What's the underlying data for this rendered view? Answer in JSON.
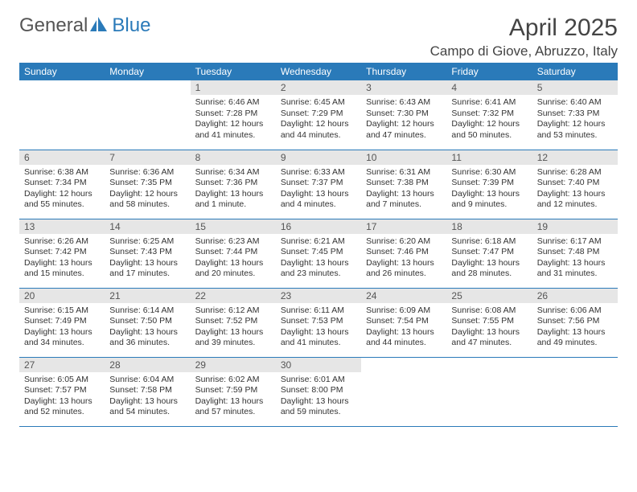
{
  "logo": {
    "word1": "General",
    "word2": "Blue"
  },
  "title": "April 2025",
  "location": "Campo di Giove, Abruzzo, Italy",
  "colors": {
    "header_bg": "#2a7ab9",
    "header_fg": "#ffffff",
    "daynum_bg": "#e6e6e6",
    "text": "#333333",
    "rule": "#2a7ab9"
  },
  "weekdays": [
    "Sunday",
    "Monday",
    "Tuesday",
    "Wednesday",
    "Thursday",
    "Friday",
    "Saturday"
  ],
  "weeks": [
    [
      null,
      null,
      {
        "n": "1",
        "sr": "Sunrise: 6:46 AM",
        "ss": "Sunset: 7:28 PM",
        "dl": "Daylight: 12 hours and 41 minutes."
      },
      {
        "n": "2",
        "sr": "Sunrise: 6:45 AM",
        "ss": "Sunset: 7:29 PM",
        "dl": "Daylight: 12 hours and 44 minutes."
      },
      {
        "n": "3",
        "sr": "Sunrise: 6:43 AM",
        "ss": "Sunset: 7:30 PM",
        "dl": "Daylight: 12 hours and 47 minutes."
      },
      {
        "n": "4",
        "sr": "Sunrise: 6:41 AM",
        "ss": "Sunset: 7:32 PM",
        "dl": "Daylight: 12 hours and 50 minutes."
      },
      {
        "n": "5",
        "sr": "Sunrise: 6:40 AM",
        "ss": "Sunset: 7:33 PM",
        "dl": "Daylight: 12 hours and 53 minutes."
      }
    ],
    [
      {
        "n": "6",
        "sr": "Sunrise: 6:38 AM",
        "ss": "Sunset: 7:34 PM",
        "dl": "Daylight: 12 hours and 55 minutes."
      },
      {
        "n": "7",
        "sr": "Sunrise: 6:36 AM",
        "ss": "Sunset: 7:35 PM",
        "dl": "Daylight: 12 hours and 58 minutes."
      },
      {
        "n": "8",
        "sr": "Sunrise: 6:34 AM",
        "ss": "Sunset: 7:36 PM",
        "dl": "Daylight: 13 hours and 1 minute."
      },
      {
        "n": "9",
        "sr": "Sunrise: 6:33 AM",
        "ss": "Sunset: 7:37 PM",
        "dl": "Daylight: 13 hours and 4 minutes."
      },
      {
        "n": "10",
        "sr": "Sunrise: 6:31 AM",
        "ss": "Sunset: 7:38 PM",
        "dl": "Daylight: 13 hours and 7 minutes."
      },
      {
        "n": "11",
        "sr": "Sunrise: 6:30 AM",
        "ss": "Sunset: 7:39 PM",
        "dl": "Daylight: 13 hours and 9 minutes."
      },
      {
        "n": "12",
        "sr": "Sunrise: 6:28 AM",
        "ss": "Sunset: 7:40 PM",
        "dl": "Daylight: 13 hours and 12 minutes."
      }
    ],
    [
      {
        "n": "13",
        "sr": "Sunrise: 6:26 AM",
        "ss": "Sunset: 7:42 PM",
        "dl": "Daylight: 13 hours and 15 minutes."
      },
      {
        "n": "14",
        "sr": "Sunrise: 6:25 AM",
        "ss": "Sunset: 7:43 PM",
        "dl": "Daylight: 13 hours and 17 minutes."
      },
      {
        "n": "15",
        "sr": "Sunrise: 6:23 AM",
        "ss": "Sunset: 7:44 PM",
        "dl": "Daylight: 13 hours and 20 minutes."
      },
      {
        "n": "16",
        "sr": "Sunrise: 6:21 AM",
        "ss": "Sunset: 7:45 PM",
        "dl": "Daylight: 13 hours and 23 minutes."
      },
      {
        "n": "17",
        "sr": "Sunrise: 6:20 AM",
        "ss": "Sunset: 7:46 PM",
        "dl": "Daylight: 13 hours and 26 minutes."
      },
      {
        "n": "18",
        "sr": "Sunrise: 6:18 AM",
        "ss": "Sunset: 7:47 PM",
        "dl": "Daylight: 13 hours and 28 minutes."
      },
      {
        "n": "19",
        "sr": "Sunrise: 6:17 AM",
        "ss": "Sunset: 7:48 PM",
        "dl": "Daylight: 13 hours and 31 minutes."
      }
    ],
    [
      {
        "n": "20",
        "sr": "Sunrise: 6:15 AM",
        "ss": "Sunset: 7:49 PM",
        "dl": "Daylight: 13 hours and 34 minutes."
      },
      {
        "n": "21",
        "sr": "Sunrise: 6:14 AM",
        "ss": "Sunset: 7:50 PM",
        "dl": "Daylight: 13 hours and 36 minutes."
      },
      {
        "n": "22",
        "sr": "Sunrise: 6:12 AM",
        "ss": "Sunset: 7:52 PM",
        "dl": "Daylight: 13 hours and 39 minutes."
      },
      {
        "n": "23",
        "sr": "Sunrise: 6:11 AM",
        "ss": "Sunset: 7:53 PM",
        "dl": "Daylight: 13 hours and 41 minutes."
      },
      {
        "n": "24",
        "sr": "Sunrise: 6:09 AM",
        "ss": "Sunset: 7:54 PM",
        "dl": "Daylight: 13 hours and 44 minutes."
      },
      {
        "n": "25",
        "sr": "Sunrise: 6:08 AM",
        "ss": "Sunset: 7:55 PM",
        "dl": "Daylight: 13 hours and 47 minutes."
      },
      {
        "n": "26",
        "sr": "Sunrise: 6:06 AM",
        "ss": "Sunset: 7:56 PM",
        "dl": "Daylight: 13 hours and 49 minutes."
      }
    ],
    [
      {
        "n": "27",
        "sr": "Sunrise: 6:05 AM",
        "ss": "Sunset: 7:57 PM",
        "dl": "Daylight: 13 hours and 52 minutes."
      },
      {
        "n": "28",
        "sr": "Sunrise: 6:04 AM",
        "ss": "Sunset: 7:58 PM",
        "dl": "Daylight: 13 hours and 54 minutes."
      },
      {
        "n": "29",
        "sr": "Sunrise: 6:02 AM",
        "ss": "Sunset: 7:59 PM",
        "dl": "Daylight: 13 hours and 57 minutes."
      },
      {
        "n": "30",
        "sr": "Sunrise: 6:01 AM",
        "ss": "Sunset: 8:00 PM",
        "dl": "Daylight: 13 hours and 59 minutes."
      },
      null,
      null,
      null
    ]
  ]
}
